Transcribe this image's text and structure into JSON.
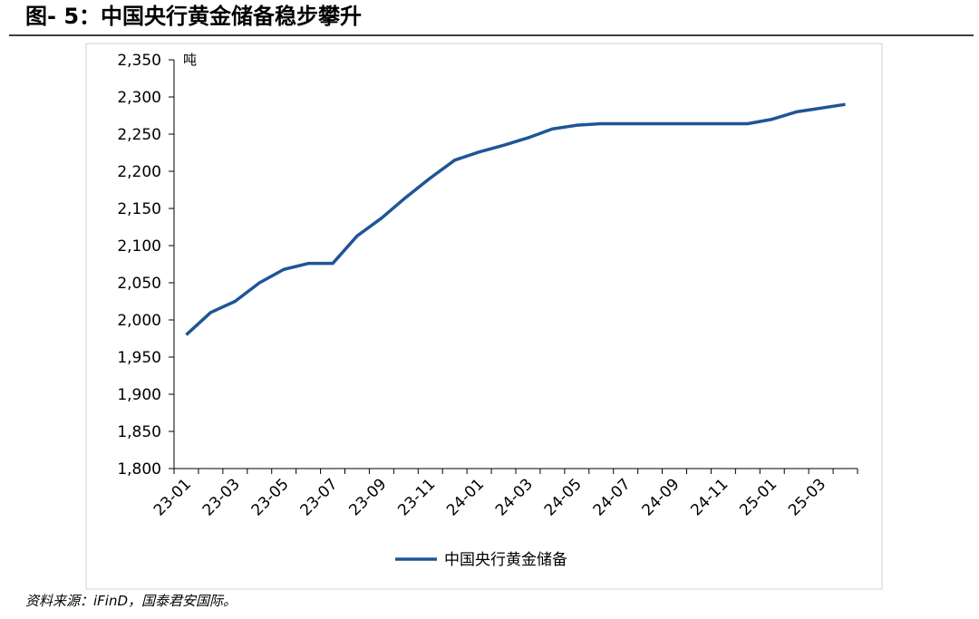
{
  "chart_data": {
    "type": "line",
    "title": "图- 5：中国央行黄金储备稳步攀升",
    "y_unit": "吨",
    "source": "资料来源：iFinD，国泰君安国际。",
    "categories": [
      "23-01",
      null,
      "23-03",
      null,
      "23-05",
      null,
      "23-07",
      null,
      "23-09",
      null,
      "23-11",
      null,
      "24-01",
      null,
      "24-03",
      null,
      "24-05",
      null,
      "24-07",
      null,
      "24-09",
      null,
      "24-11",
      null,
      "25-01",
      null,
      "25-03",
      null
    ],
    "series": [
      {
        "name": "中国央行黄金储备",
        "color": "#1f5597",
        "values": [
          1980,
          2010,
          2025,
          2050,
          2068,
          2076,
          2076,
          2113,
          2137,
          2165,
          2191,
          2215,
          2226,
          2235,
          2245,
          2257,
          2262,
          2264,
          2264,
          2264,
          2264,
          2264,
          2264,
          2264,
          2270,
          2280,
          2285,
          2290
        ]
      }
    ],
    "ylim": [
      1800,
      2350
    ],
    "yticks": [
      {
        "value": 1800,
        "label": "1,800"
      },
      {
        "value": 1850,
        "label": "1,850"
      },
      {
        "value": 1900,
        "label": "1,900"
      },
      {
        "value": 1950,
        "label": "1,950"
      },
      {
        "value": 2000,
        "label": "2,000"
      },
      {
        "value": 2050,
        "label": "2,050"
      },
      {
        "value": 2100,
        "label": "2,100"
      },
      {
        "value": 2150,
        "label": "2,150"
      },
      {
        "value": 2200,
        "label": "2,200"
      },
      {
        "value": 2250,
        "label": "2,250"
      },
      {
        "value": 2300,
        "label": "2,300"
      },
      {
        "value": 2350,
        "label": "2,350"
      }
    ],
    "legend": "bottom"
  }
}
